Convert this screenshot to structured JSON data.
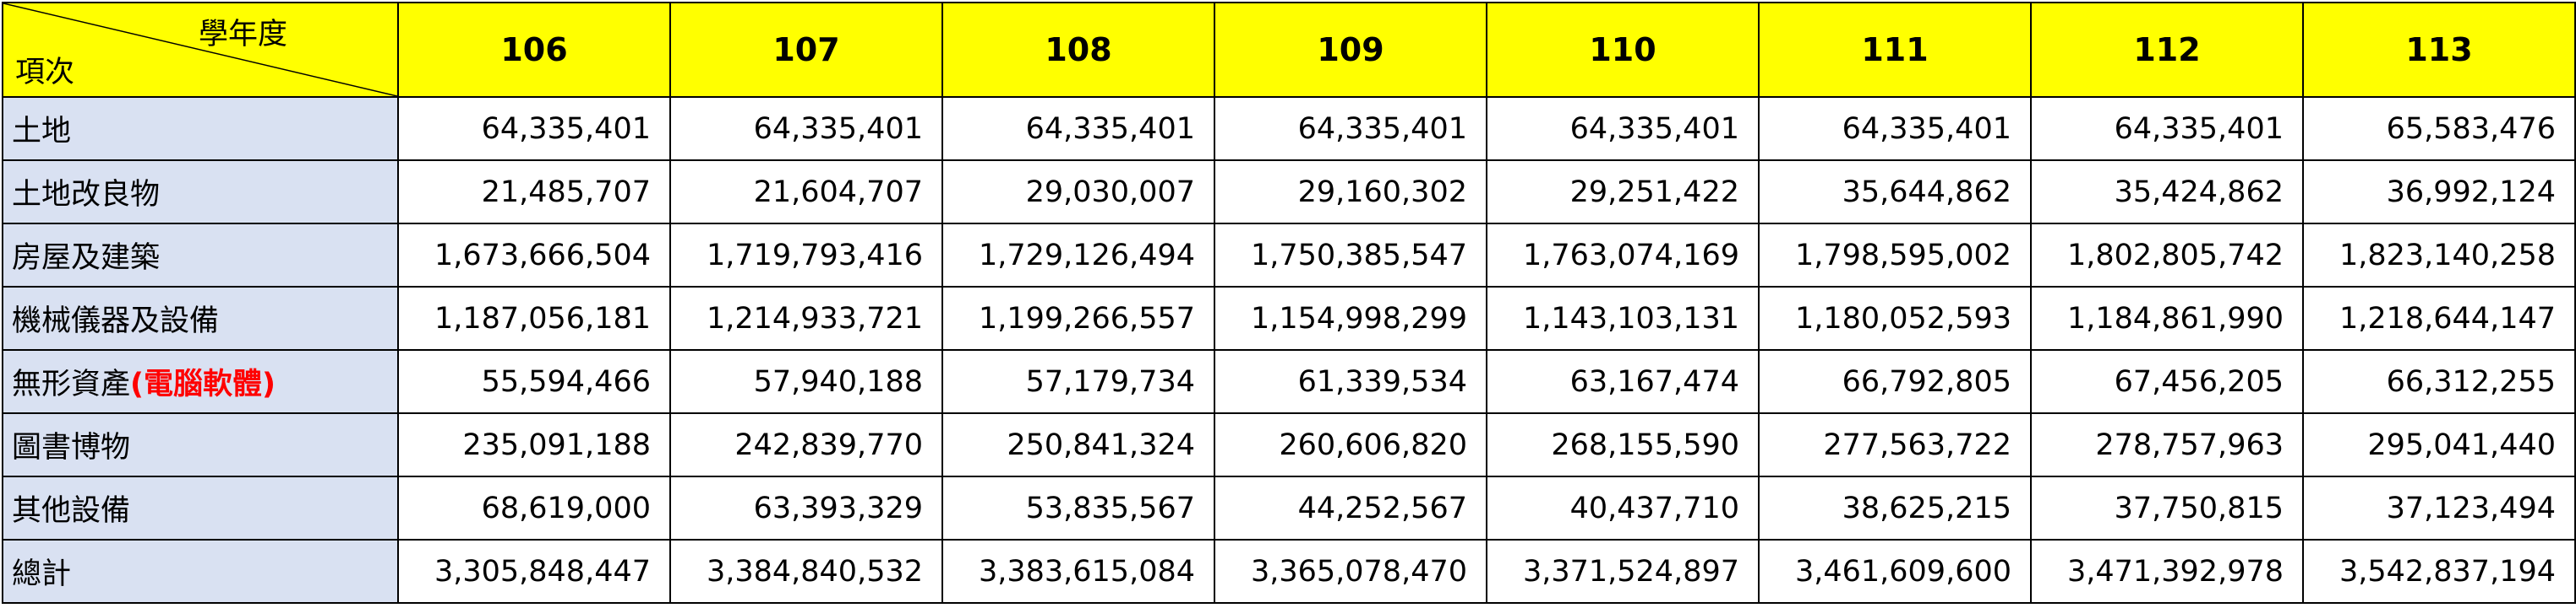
{
  "corner": {
    "top_label": "學年度",
    "bottom_label": "項次"
  },
  "years": [
    "106",
    "107",
    "108",
    "109",
    "110",
    "111",
    "112",
    "113"
  ],
  "rows": [
    {
      "label": "土地",
      "values": [
        "64,335,401",
        "64,335,401",
        "64,335,401",
        "64,335,401",
        "64,335,401",
        "64,335,401",
        "64,335,401",
        "65,583,476"
      ]
    },
    {
      "label": "土地改良物",
      "values": [
        "21,485,707",
        "21,604,707",
        "29,030,007",
        "29,160,302",
        "29,251,422",
        "35,644,862",
        "35,424,862",
        "36,992,124"
      ]
    },
    {
      "label": "房屋及建築",
      "values": [
        "1,673,666,504",
        "1,719,793,416",
        "1,729,126,494",
        "1,750,385,547",
        "1,763,074,169",
        "1,798,595,002",
        "1,802,805,742",
        "1,823,140,258"
      ]
    },
    {
      "label": "機械儀器及設備",
      "values": [
        "1,187,056,181",
        "1,214,933,721",
        "1,199,266,557",
        "1,154,998,299",
        "1,143,103,131",
        "1,180,052,593",
        "1,184,861,990",
        "1,218,644,147"
      ]
    },
    {
      "label": "無形資產",
      "label_note": "(電腦軟體)",
      "values": [
        "55,594,466",
        "57,940,188",
        "57,179,734",
        "61,339,534",
        "63,167,474",
        "66,792,805",
        "67,456,205",
        "66,312,255"
      ]
    },
    {
      "label": "圖書博物",
      "values": [
        "235,091,188",
        "242,839,770",
        "250,841,324",
        "260,606,820",
        "268,155,590",
        "277,563,722",
        "278,757,963",
        "295,041,440"
      ]
    },
    {
      "label": "其他設備",
      "values": [
        "68,619,000",
        "63,393,329",
        "53,835,567",
        "44,252,567",
        "40,437,710",
        "38,625,215",
        "37,750,815",
        "37,123,494"
      ]
    },
    {
      "label": "總計",
      "values": [
        "3,305,848,447",
        "3,384,840,532",
        "3,383,615,084",
        "3,365,078,470",
        "3,371,524,897",
        "3,461,609,600",
        "3,471,392,978",
        "3,542,837,194"
      ]
    }
  ],
  "colors": {
    "header_bg": "#ffff00",
    "label_bg": "#d9e1f2",
    "note": "#ff0000",
    "border": "#000000"
  }
}
